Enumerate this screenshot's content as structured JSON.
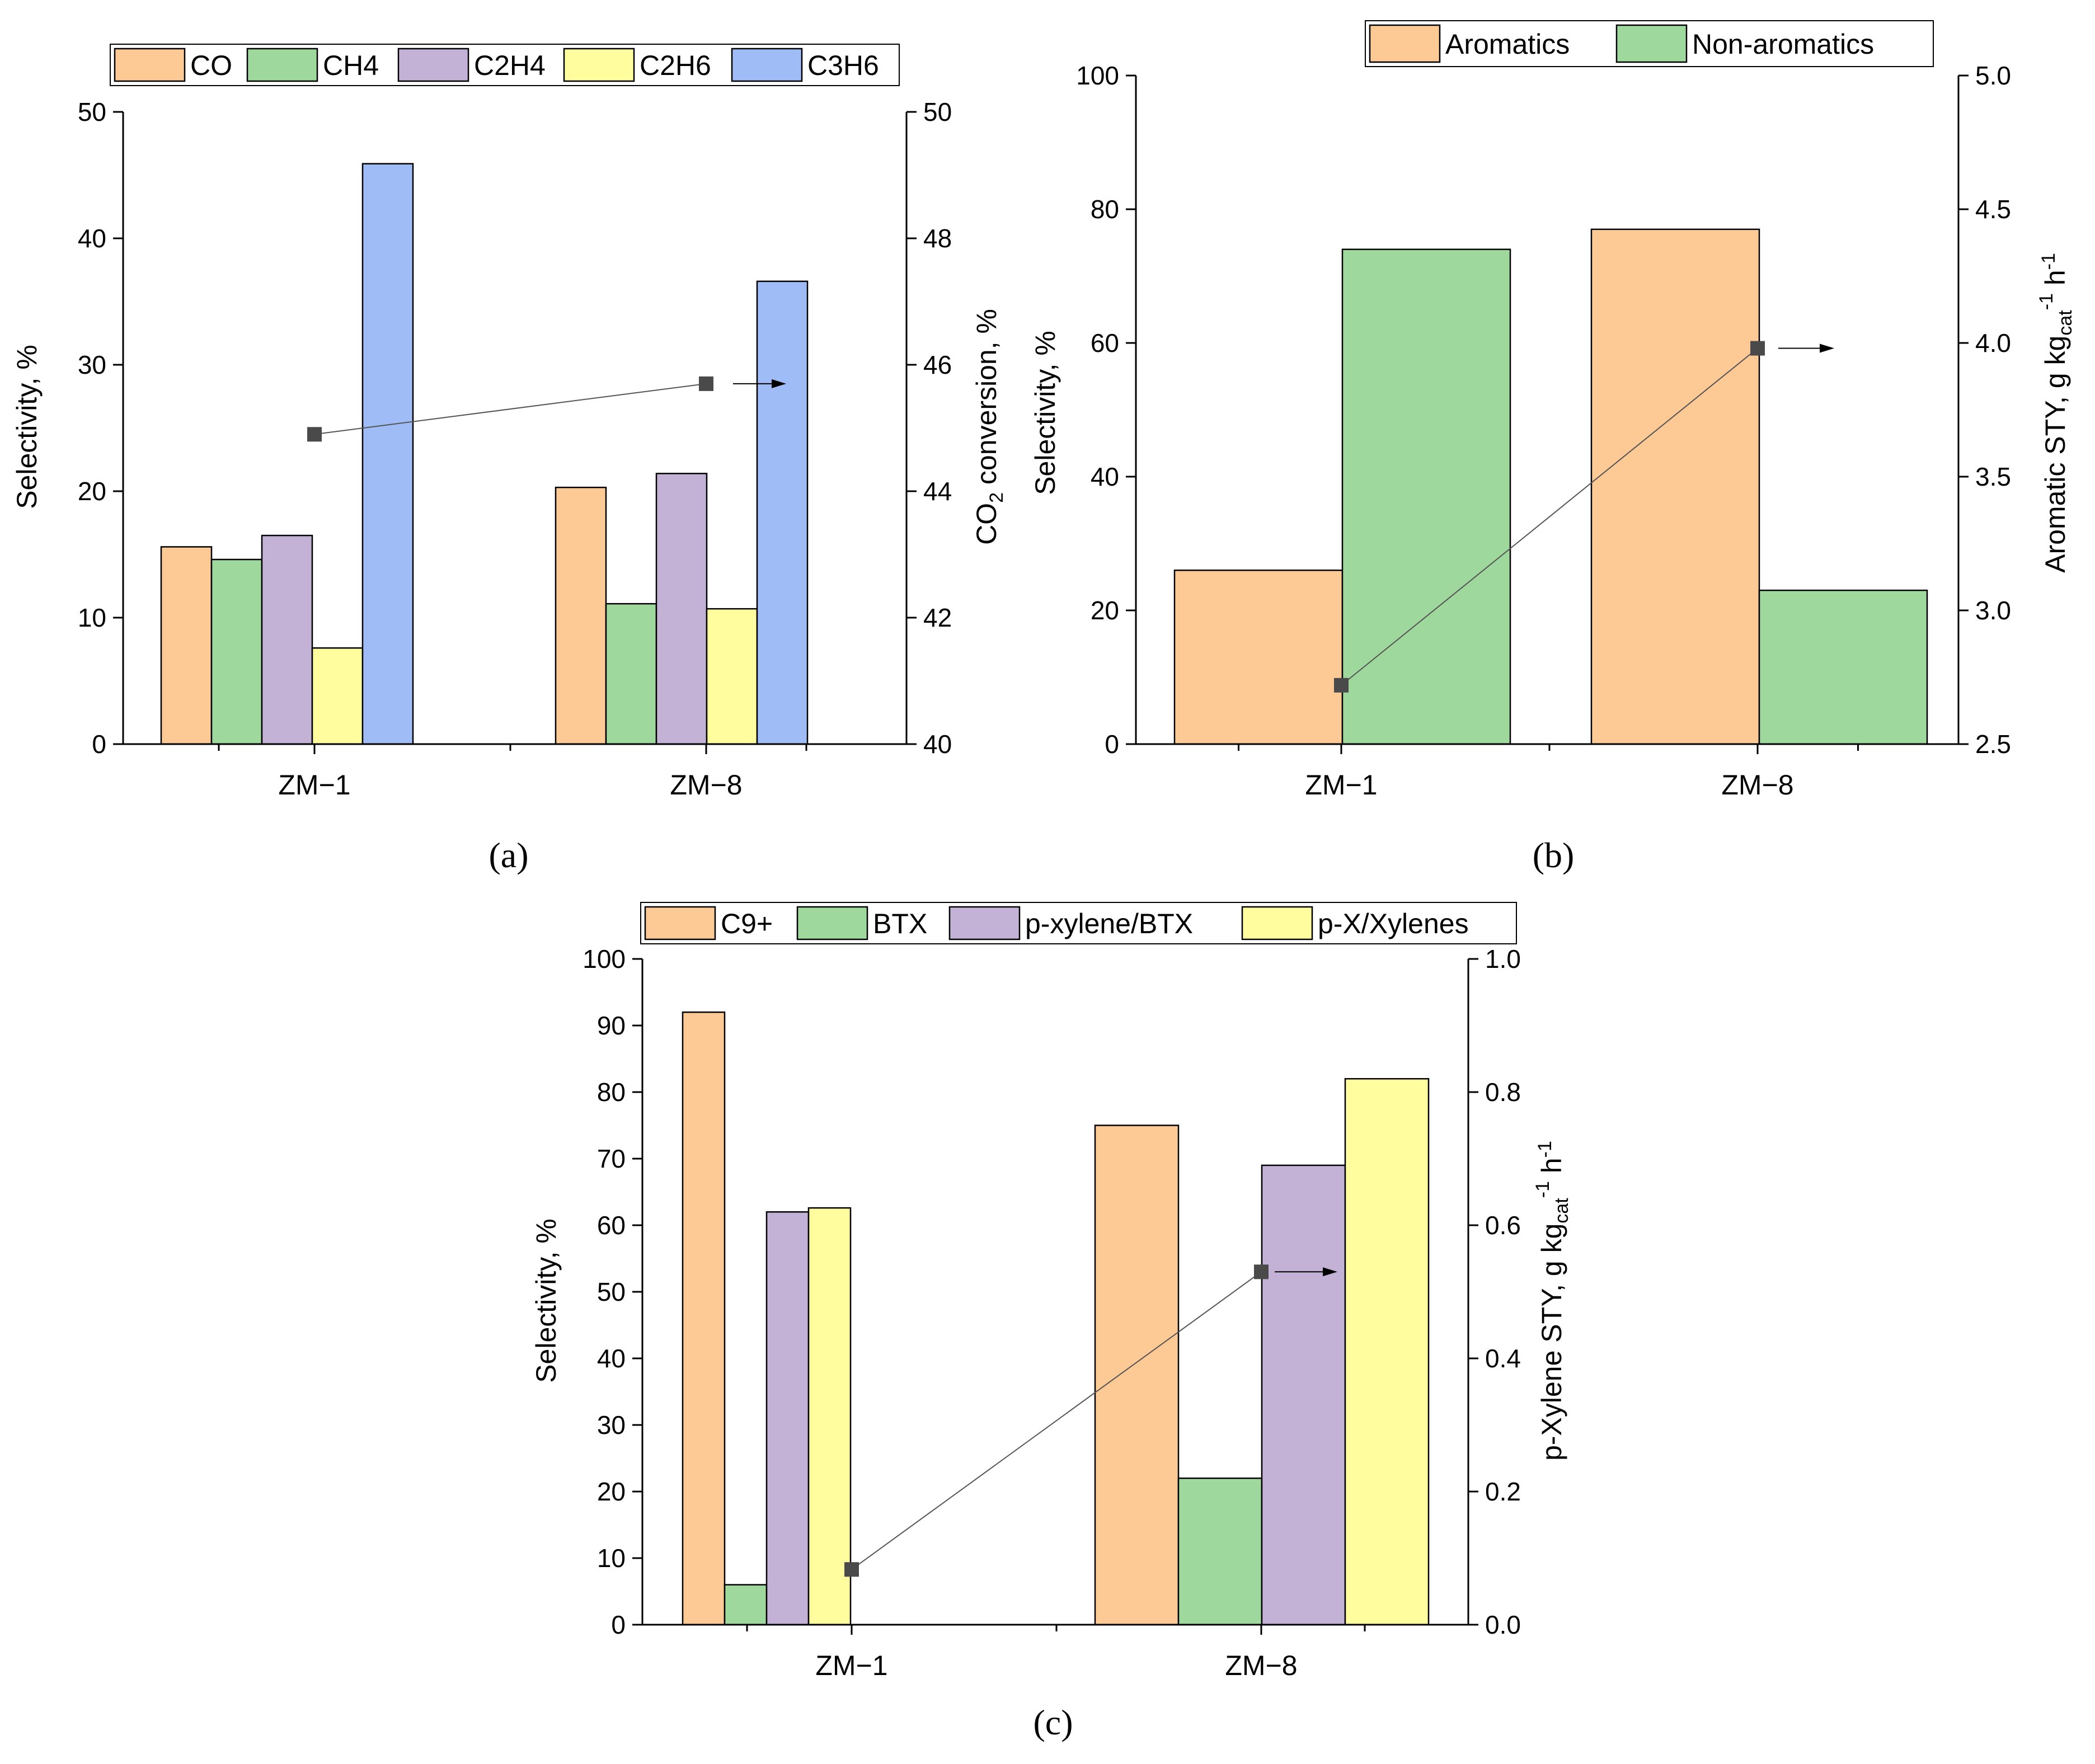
{
  "colors": {
    "CO": "#FDC994",
    "CH4": "#9FD89C",
    "C2H4": "#C4B2D6",
    "C2H6": "#FFFD9E",
    "C3H6": "#9FBCF6",
    "Aromatics": "#FDC994",
    "Non-aromatics": "#9FD89C",
    "C9+": "#FDC994",
    "BTX": "#9FD89C",
    "p-xylene/BTX": "#C4B2D6",
    "p-X/Xylenes": "#FFFD9E",
    "marker": "#4A4A4A"
  },
  "chart_data": [
    {
      "panel": "(a)",
      "type": "bar",
      "categories": [
        "ZM−1",
        "ZM−8"
      ],
      "series": [
        {
          "name": "CO",
          "values": [
            15.6,
            20.3
          ]
        },
        {
          "name": "CH4",
          "values": [
            14.6,
            11.1
          ]
        },
        {
          "name": "C2H4",
          "values": [
            16.5,
            21.4
          ]
        },
        {
          "name": "C2H6",
          "values": [
            7.6,
            10.7
          ]
        },
        {
          "name": "C3H6",
          "values": [
            45.9,
            36.6
          ]
        }
      ],
      "ylabel": "Selectivity, %",
      "ylim": [
        0,
        50
      ],
      "yticks": [
        "0",
        "10",
        "20",
        "30",
        "40",
        "50"
      ],
      "y2label_main": "CO",
      "y2label_sub": "2",
      "y2label_rest": " conversion, %",
      "y2lim": [
        40,
        50
      ],
      "y2ticks": [
        "40",
        "42",
        "44",
        "46",
        "48",
        "50"
      ],
      "line": {
        "values": [
          44.9,
          45.7
        ],
        "axis": "right"
      },
      "legend": "top"
    },
    {
      "panel": "(b)",
      "type": "bar",
      "categories": [
        "ZM−1",
        "ZM−8"
      ],
      "series": [
        {
          "name": "Aromatics",
          "values": [
            26,
            77
          ]
        },
        {
          "name": "Non-aromatics",
          "values": [
            74,
            23
          ]
        }
      ],
      "ylabel": "Selectivity, %",
      "ylim": [
        0,
        100
      ],
      "yticks": [
        "0",
        "20",
        "40",
        "60",
        "80",
        "100"
      ],
      "y2label_main": "Aromatic STY, g kg",
      "y2label_sub": "cat",
      "y2label_sup1": "-1",
      "y2label_mid": " h",
      "y2label_sup2": "-1",
      "y2lim": [
        2.5,
        5.0
      ],
      "y2ticks": [
        "2.5",
        "3.0",
        "3.5",
        "4.0",
        "4.5",
        "5.0"
      ],
      "line": {
        "values": [
          2.72,
          3.98
        ],
        "axis": "right"
      },
      "legend": "top-right"
    },
    {
      "panel": "(c)",
      "type": "bar",
      "categories": [
        "ZM−1",
        "ZM−8"
      ],
      "series": [
        {
          "name": "C9+",
          "values": [
            92,
            75
          ]
        },
        {
          "name": "BTX",
          "values": [
            6,
            22
          ]
        },
        {
          "name": "p-xylene/BTX",
          "values": [
            62,
            69
          ]
        },
        {
          "name": "p-X/Xylenes",
          "values": [
            62.6,
            82
          ]
        }
      ],
      "ylabel": "Selectivity, %",
      "ylim": [
        0,
        100
      ],
      "yticks": [
        "0",
        "10",
        "20",
        "30",
        "40",
        "50",
        "60",
        "70",
        "80",
        "90",
        "100"
      ],
      "y2label_main": "p-Xylene STY, g kg",
      "y2label_sub": "cat",
      "y2label_sup1": "-1",
      "y2label_mid": " h",
      "y2label_sup2": "-1",
      "y2lim": [
        0.0,
        1.0
      ],
      "y2ticks": [
        "0.0",
        "0.2",
        "0.4",
        "0.6",
        "0.8",
        "1.0"
      ],
      "line": {
        "values": [
          0.083,
          0.53
        ],
        "axis": "right"
      },
      "legend": "top"
    }
  ]
}
